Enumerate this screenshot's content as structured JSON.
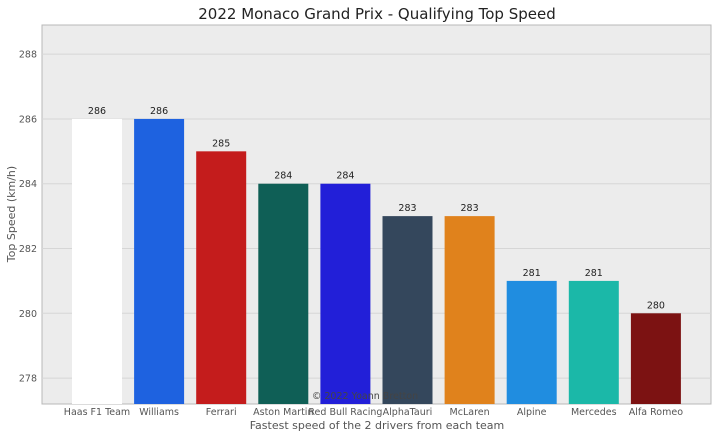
{
  "chart_data": {
    "type": "bar",
    "title": "2022 Monaco Grand Prix - Qualifying Top Speed",
    "xlabel": "Fastest speed of the 2 drivers from each team",
    "ylabel": "Top Speed (km/h)",
    "ylim": [
      277.2,
      288.9
    ],
    "yticks": [
      278,
      280,
      282,
      284,
      286,
      288
    ],
    "grid": true,
    "categories": [
      "Haas F1 Team",
      "Williams",
      "Ferrari",
      "Aston Martin",
      "Red Bull Racing",
      "AlphaTauri",
      "McLaren",
      "Alpine",
      "Mercedes",
      "Alfa Romeo"
    ],
    "values": [
      286,
      286,
      285,
      284,
      284,
      283,
      283,
      281,
      281,
      280
    ],
    "data_labels": [
      "286",
      "286",
      "285",
      "284",
      "284",
      "283",
      "283",
      "281",
      "281",
      "280"
    ],
    "colors": [
      "#ffffff",
      "#1e62e0",
      "#c41c1c",
      "#0f5f56",
      "#221fd8",
      "#34475c",
      "#e0821c",
      "#208de0",
      "#1bb8a8",
      "#7c1212"
    ],
    "annotation": "© 2022 Yoann Bretton"
  }
}
